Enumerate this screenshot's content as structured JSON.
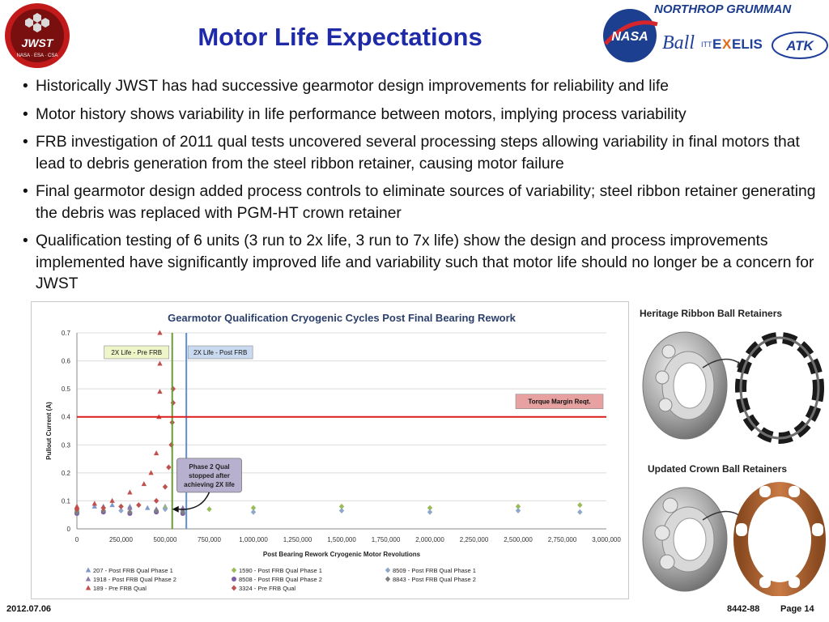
{
  "slide": {
    "title": "Motor Life Expectations",
    "logo_jwst_text": "James Webb Space Telescope · JWST · NASA · ESA · CSA",
    "partner_logos": [
      "NASA",
      "NORTHROP GRUMMAN",
      "Ball",
      "ITT EXELIS",
      "ATK"
    ],
    "bullets": [
      "Historically JWST has had successive gearmotor design improvements for reliability and life",
      "Motor history shows variability in life performance between motors, implying process variability",
      "FRB investigation of 2011 qual tests uncovered several processing steps allowing variability in final motors that lead to debris generation from the steel ribbon retainer, causing motor failure",
      "Final gearmotor design added process controls to eliminate sources of variability; steel ribbon retainer generating the debris was replaced with PGM-HT crown retainer",
      "Qualification testing of 6 units (3 run to 2x life, 3 run to 7x life) show the design and process improvements implemented have significantly improved life and variability such that motor life should no longer be a concern for JWST"
    ],
    "images": {
      "heritage_title": "Heritage Ribbon Ball Retainers",
      "updated_title": "Updated Crown Ball Retainers"
    },
    "footer": {
      "date": "2012.07.06",
      "doc": "8442-88",
      "page": "Page 14"
    }
  },
  "chart_data": {
    "type": "scatter",
    "title": "Gearmotor Qualification Cryogenic Cycles Post Final Bearing Rework",
    "xlabel": "Post Bearing Rework Cryogenic Motor Revolutions",
    "ylabel": "Pullout Current (A)",
    "xlim": [
      0,
      3000000
    ],
    "ylim": [
      0,
      0.7
    ],
    "xticks": [
      "0",
      "250,000",
      "500,000",
      "750,000",
      "1,000,000",
      "1,250,000",
      "1,500,000",
      "1,750,000",
      "2,000,000",
      "2,250,000",
      "2,500,000",
      "2,750,000",
      "3,000,000"
    ],
    "yticks": [
      "0",
      "0.1",
      "0.2",
      "0.3",
      "0.4",
      "0.5",
      "0.6",
      "0.7"
    ],
    "grid": "horizontal",
    "legend_position": "bottom",
    "reference_lines": [
      {
        "label": "2X Life - Pre FRB",
        "axis": "x",
        "value": 540000,
        "color": "#6a9a3a",
        "label_fill": "#eef5c8"
      },
      {
        "label": "2X Life - Post FRB",
        "axis": "x",
        "value": 620000,
        "color": "#5b8fd6",
        "label_fill": "#c9daf0"
      },
      {
        "label": "Torque Margin Reqt.",
        "axis": "y",
        "value": 0.4,
        "color": "#dd1c1c",
        "label_fill": "#e7a1a1"
      }
    ],
    "annotations": [
      {
        "text": [
          "Phase 2 Qual",
          "stopped after",
          "achieving 2X life"
        ],
        "x": 750000,
        "y": 0.2,
        "arrow_to": [
          540000,
          0.07
        ]
      }
    ],
    "series": [
      {
        "name": "207 - Post FRB Qual Phase 1",
        "marker": "triangle",
        "color": "#7f97c9",
        "points": [
          [
            0,
            0.07
          ],
          [
            100000,
            0.08
          ],
          [
            200000,
            0.085
          ],
          [
            300000,
            0.08
          ],
          [
            400000,
            0.075
          ],
          [
            500000,
            0.08
          ],
          [
            600000,
            0.07
          ]
        ]
      },
      {
        "name": "1590 - Post FRB Qual Phase 1",
        "marker": "diamond",
        "color": "#9bbb59",
        "points": [
          [
            0,
            0.065
          ],
          [
            250000,
            0.08
          ],
          [
            500000,
            0.075
          ],
          [
            750000,
            0.07
          ],
          [
            1000000,
            0.075
          ],
          [
            1500000,
            0.08
          ],
          [
            2000000,
            0.075
          ],
          [
            2500000,
            0.08
          ],
          [
            2850000,
            0.085
          ]
        ]
      },
      {
        "name": "8509 - Post FRB Qual Phase 1",
        "marker": "diamond",
        "color": "#8fa8c8",
        "points": [
          [
            0,
            0.06
          ],
          [
            250000,
            0.065
          ],
          [
            500000,
            0.07
          ],
          [
            1000000,
            0.06
          ],
          [
            1500000,
            0.065
          ],
          [
            2000000,
            0.06
          ],
          [
            2500000,
            0.065
          ],
          [
            2850000,
            0.06
          ]
        ]
      },
      {
        "name": "1918 - Post FRB Qual Phase 2",
        "marker": "triangle",
        "color": "#8c7aa8",
        "points": [
          [
            0,
            0.075
          ],
          [
            150000,
            0.08
          ],
          [
            300000,
            0.075
          ],
          [
            450000,
            0.07
          ],
          [
            600000,
            0.075
          ]
        ]
      },
      {
        "name": "8508 - Post FRB Qual Phase 2",
        "marker": "circle",
        "color": "#7b5ea7",
        "points": [
          [
            0,
            0.055
          ],
          [
            150000,
            0.06
          ],
          [
            300000,
            0.055
          ],
          [
            450000,
            0.06
          ],
          [
            600000,
            0.055
          ]
        ]
      },
      {
        "name": "8843 - Post FRB Qual Phase 2",
        "marker": "diamond",
        "color": "#7f7f7f",
        "points": [
          [
            0,
            0.06
          ],
          [
            150000,
            0.065
          ],
          [
            300000,
            0.06
          ],
          [
            450000,
            0.065
          ],
          [
            600000,
            0.06
          ]
        ]
      },
      {
        "name": "189 - Pre FRB Qual",
        "marker": "triangle",
        "color": "#c0504d",
        "points": [
          [
            0,
            0.08
          ],
          [
            100000,
            0.09
          ],
          [
            200000,
            0.1
          ],
          [
            300000,
            0.13
          ],
          [
            380000,
            0.16
          ],
          [
            420000,
            0.2
          ],
          [
            450000,
            0.27
          ],
          [
            465000,
            0.4
          ],
          [
            470000,
            0.49
          ],
          [
            470000,
            0.59
          ],
          [
            470000,
            0.7
          ]
        ]
      },
      {
        "name": "3324 - Pre FRB Qual",
        "marker": "diamond",
        "color": "#c0504d",
        "points": [
          [
            0,
            0.07
          ],
          [
            150000,
            0.075
          ],
          [
            250000,
            0.08
          ],
          [
            350000,
            0.085
          ],
          [
            450000,
            0.1
          ],
          [
            500000,
            0.15
          ],
          [
            520000,
            0.22
          ],
          [
            535000,
            0.3
          ],
          [
            540000,
            0.38
          ],
          [
            545000,
            0.45
          ],
          [
            545000,
            0.5
          ]
        ]
      }
    ]
  }
}
